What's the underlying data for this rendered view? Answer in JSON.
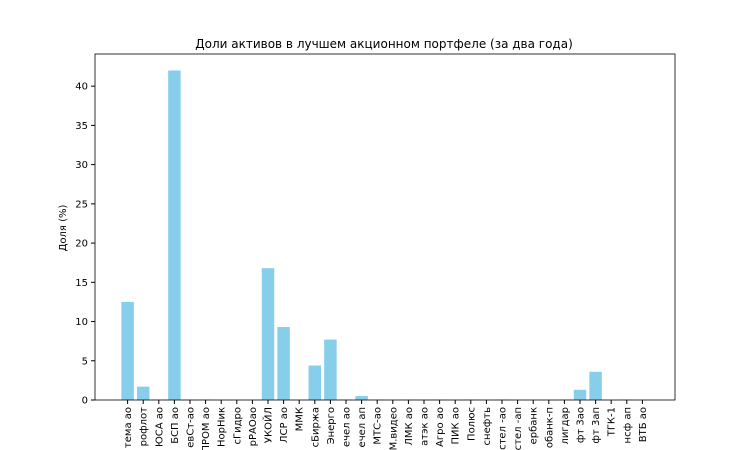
{
  "chart_data": {
    "type": "bar",
    "title": "Доли активов в лучшем акционном портфеле (за два года)",
    "y_label": "Доля (%)",
    "categories": [
      "тема ао",
      "рофлот",
      "ЮСА ао",
      "БСП ао",
      "евСт-ао",
      "ПРОМ ао",
      "НорНик",
      "сГидро",
      "рРАОао",
      "УКОЙЛ",
      "ЛСР ао",
      "ММК",
      "сБиржа",
      "Энерго",
      "ечел ао",
      "ечел ап",
      "МТС-ао",
      "М.видео",
      "ЛМК ао",
      "атэк ао",
      "Агро ао",
      "ПИК ао",
      "Полюс",
      "снефть",
      "стел -ао",
      "стел -ап",
      "ербанк",
      "обанк-п",
      "лигдар",
      "фт 3ао",
      "фт 3ап",
      "ТГК-1",
      "нсф ап",
      "ВТБ ао"
    ],
    "values": [
      12.5,
      1.7,
      0.05,
      42,
      0.05,
      0.05,
      0,
      0,
      0,
      16.8,
      9.3,
      0,
      4.4,
      7.7,
      0.05,
      0.5,
      0.05,
      0,
      0.05,
      0.05,
      0.05,
      0,
      0.05,
      0,
      0.05,
      0,
      0,
      0,
      0.05,
      1.3,
      3.6,
      0,
      0.05,
      0
    ],
    "color": "#87ceeb",
    "ylim": [
      0,
      44.1
    ],
    "yticks": [
      0,
      5,
      10,
      15,
      20,
      25,
      30,
      35,
      40
    ],
    "grid": false
  }
}
